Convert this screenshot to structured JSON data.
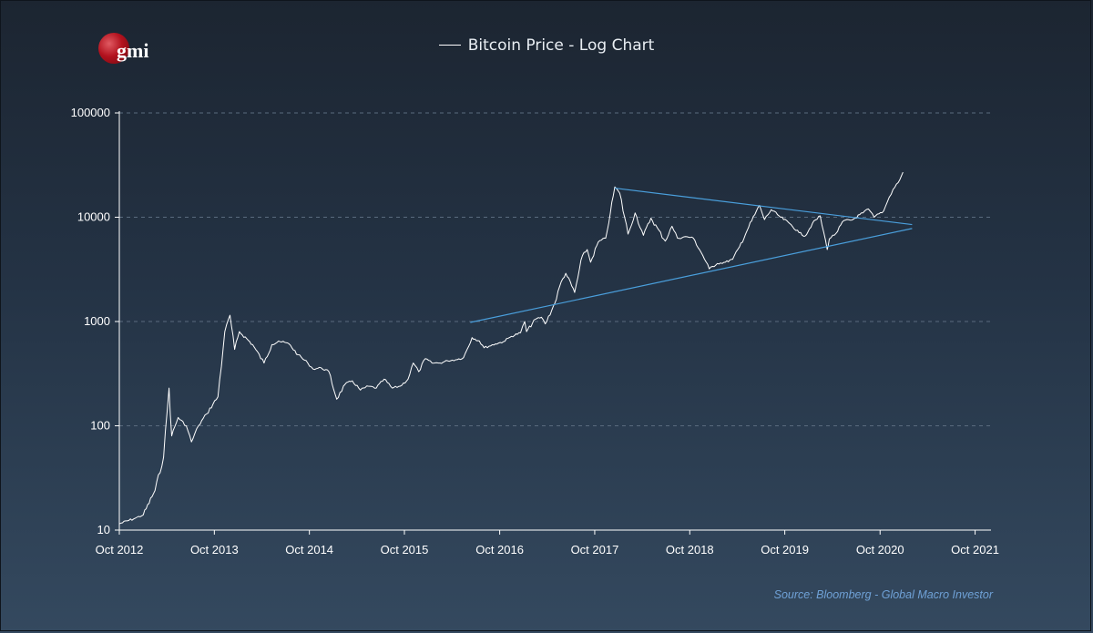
{
  "logo": {
    "text": "gmi"
  },
  "source": "Source: Bloomberg - Global Macro Investor",
  "chart_data": {
    "type": "line",
    "title": "Bitcoin Price - Log Chart",
    "xlabel": "",
    "ylabel": "",
    "yscale": "log",
    "ylim": [
      10,
      100000
    ],
    "xlim": [
      "2012-10-01",
      "2021-12-01"
    ],
    "grid": "horizontal dashed",
    "y_ticks": [
      "10",
      "100",
      "1000",
      "10000",
      "100000"
    ],
    "x_ticks": [
      "Oct 2012",
      "Oct 2013",
      "Oct 2014",
      "Oct 2015",
      "Oct 2016",
      "Oct 2017",
      "Oct 2018",
      "Oct 2019",
      "Oct 2020",
      "Oct 2021"
    ],
    "series": [
      {
        "color": "#ffffff",
        "x": [
          "2012-10-01",
          "2012-12-01",
          "2013-01-01",
          "2013-02-15",
          "2013-03-20",
          "2013-04-10",
          "2013-04-20",
          "2013-05-15",
          "2013-06-15",
          "2013-07-05",
          "2013-08-01",
          "2013-09-01",
          "2013-10-15",
          "2013-11-10",
          "2013-11-30",
          "2013-12-18",
          "2014-01-05",
          "2014-02-25",
          "2014-04-10",
          "2014-05-10",
          "2014-06-05",
          "2014-07-15",
          "2014-08-18",
          "2014-09-25",
          "2014-10-15",
          "2014-11-15",
          "2014-12-15",
          "2015-01-14",
          "2015-02-15",
          "2015-03-15",
          "2015-04-15",
          "2015-05-15",
          "2015-06-15",
          "2015-07-15",
          "2015-08-15",
          "2015-09-15",
          "2015-10-15",
          "2015-11-04",
          "2015-11-25",
          "2015-12-20",
          "2016-01-15",
          "2016-02-15",
          "2016-03-15",
          "2016-04-15",
          "2016-05-15",
          "2016-06-17",
          "2016-07-15",
          "2016-08-02",
          "2016-09-15",
          "2016-10-15",
          "2016-11-15",
          "2016-12-20",
          "2017-01-05",
          "2017-01-12",
          "2017-02-15",
          "2017-03-10",
          "2017-03-25",
          "2017-05-01",
          "2017-05-25",
          "2017-06-12",
          "2017-07-16",
          "2017-08-15",
          "2017-09-02",
          "2017-09-15",
          "2017-10-15",
          "2017-11-12",
          "2017-11-30",
          "2017-12-17",
          "2018-01-05",
          "2018-02-06",
          "2018-03-05",
          "2018-04-06",
          "2018-05-05",
          "2018-06-29",
          "2018-07-25",
          "2018-08-15",
          "2018-09-20",
          "2018-10-15",
          "2018-11-20",
          "2018-12-15",
          "2019-01-15",
          "2019-02-15",
          "2019-03-15",
          "2019-04-10",
          "2019-05-15",
          "2019-06-26",
          "2019-07-15",
          "2019-08-10",
          "2019-09-15",
          "2019-10-25",
          "2019-11-25",
          "2019-12-18",
          "2020-01-15",
          "2020-02-14",
          "2020-03-12",
          "2020-03-20",
          "2020-04-15",
          "2020-05-15",
          "2020-06-15",
          "2020-07-27",
          "2020-08-17",
          "2020-09-08",
          "2020-10-15",
          "2020-11-05",
          "2020-11-20",
          "2020-12-16",
          "2020-12-28"
        ],
        "values": [
          11.5,
          13,
          14,
          24,
          50,
          230,
          80,
          120,
          100,
          70,
          100,
          130,
          190,
          800,
          1150,
          540,
          800,
          600,
          400,
          600,
          650,
          610,
          480,
          400,
          350,
          360,
          330,
          180,
          250,
          270,
          220,
          240,
          230,
          280,
          230,
          240,
          280,
          400,
          330,
          440,
          400,
          400,
          420,
          430,
          450,
          700,
          650,
          560,
          610,
          640,
          720,
          780,
          1000,
          800,
          1050,
          1100,
          950,
          1500,
          2400,
          2900,
          1900,
          4300,
          4900,
          3700,
          5800,
          6300,
          11000,
          19500,
          17000,
          6900,
          11000,
          6700,
          9800,
          5900,
          8200,
          6300,
          6500,
          6300,
          4300,
          3200,
          3600,
          3700,
          3950,
          5200,
          8000,
          13000,
          9500,
          11800,
          10000,
          8500,
          7100,
          6600,
          8700,
          10300,
          4900,
          6200,
          7000,
          9300,
          9400,
          11000,
          12000,
          10000,
          11500,
          15500,
          18500,
          23000,
          27000
        ]
      }
    ],
    "annotations": [
      {
        "type": "trendline",
        "color": "#4a9fdc",
        "x": [
          "2017-12-17",
          "2021-02-01"
        ],
        "values": [
          19000,
          8500
        ]
      },
      {
        "type": "trendline",
        "color": "#4a9fdc",
        "x": [
          "2016-06-10",
          "2021-02-01"
        ],
        "values": [
          980,
          7800
        ]
      }
    ]
  }
}
